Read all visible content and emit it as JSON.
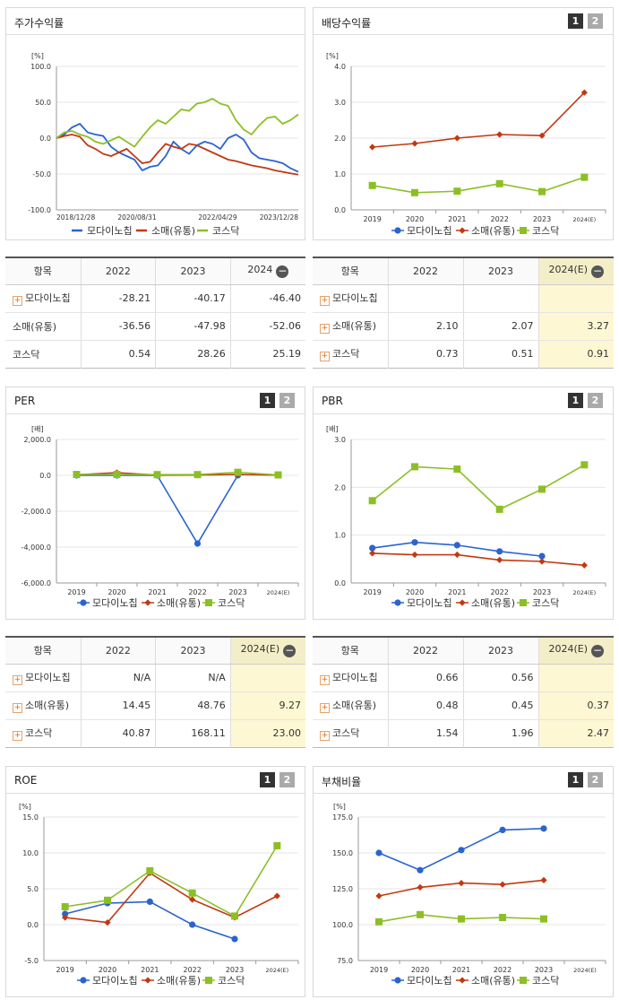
{
  "colors": {
    "series1": "#2a64d0",
    "series2": "#c23812",
    "series3": "#8cbf26",
    "highlight": "#fdf7d3"
  },
  "icons": {
    "expand": "plus-box-icon",
    "collapse": "minus-circle-icon",
    "page1": "page-1-button",
    "page2": "page-2-button"
  },
  "buttons": {
    "p1": "1",
    "p2": "2"
  },
  "tables": {
    "label_col": "항목",
    "stock": {
      "headers": [
        "2022",
        "2023",
        "2024"
      ],
      "rows": [
        {
          "name": "모다이노칩",
          "values": [
            "-28.21",
            "-40.17",
            "-46.40"
          ]
        },
        {
          "name": "소매(유통)",
          "values": [
            "-36.56",
            "-47.98",
            "-52.06"
          ]
        },
        {
          "name": "코스닥",
          "values": [
            "0.54",
            "28.26",
            "25.19"
          ]
        }
      ]
    },
    "div": {
      "headers": [
        "2022",
        "2023",
        "2024(E)"
      ],
      "rows": [
        {
          "name": "모다이노칩",
          "values": [
            "",
            "",
            ""
          ]
        },
        {
          "name": "소매(유통)",
          "values": [
            "2.10",
            "2.07",
            "3.27"
          ]
        },
        {
          "name": "코스닥",
          "values": [
            "0.73",
            "0.51",
            "0.91"
          ]
        }
      ]
    },
    "per": {
      "headers": [
        "2022",
        "2023",
        "2024(E)"
      ],
      "rows": [
        {
          "name": "모다이노칩",
          "values": [
            "N/A",
            "N/A",
            ""
          ]
        },
        {
          "name": "소매(유통)",
          "values": [
            "14.45",
            "48.76",
            "9.27"
          ]
        },
        {
          "name": "코스닥",
          "values": [
            "40.87",
            "168.11",
            "23.00"
          ]
        }
      ]
    },
    "pbr": {
      "headers": [
        "2022",
        "2023",
        "2024(E)"
      ],
      "rows": [
        {
          "name": "모다이노칩",
          "values": [
            "0.66",
            "0.56",
            ""
          ]
        },
        {
          "name": "소매(유통)",
          "values": [
            "0.48",
            "0.45",
            "0.37"
          ]
        },
        {
          "name": "코스닥",
          "values": [
            "1.54",
            "1.96",
            "2.47"
          ]
        }
      ]
    }
  },
  "chart_data": [
    {
      "id": "stock",
      "type": "line",
      "title": "주가수익률",
      "unit": "[%]",
      "ylim": [
        -100,
        100
      ],
      "yticks": [
        "100.0",
        "50.0",
        "0.0",
        "-50.0",
        "-100.0"
      ],
      "xticks": [
        "2018/12/28",
        "2020/08/31",
        "2022/04/29",
        "2023/12/28"
      ],
      "series": [
        {
          "name": "모다이노칩",
          "values": [
            0,
            5,
            15,
            20,
            8,
            5,
            3,
            -12,
            -20,
            -25,
            -30,
            -45,
            -40,
            -38,
            -25,
            -5,
            -15,
            -22,
            -10,
            -5,
            -8,
            -15,
            0,
            5,
            -2,
            -20,
            -28,
            -30,
            -32,
            -35,
            -42,
            -47
          ]
        },
        {
          "name": "소매(유통)",
          "values": [
            0,
            3,
            5,
            2,
            -10,
            -15,
            -22,
            -25,
            -20,
            -15,
            -25,
            -35,
            -33,
            -20,
            -8,
            -12,
            -15,
            -8,
            -10,
            -15,
            -20,
            -25,
            -30,
            -32,
            -35,
            -38,
            -40,
            -42,
            -45,
            -47,
            -49,
            -51
          ]
        },
        {
          "name": "코스닥",
          "values": [
            0,
            8,
            10,
            5,
            2,
            -5,
            -8,
            -3,
            2,
            -5,
            -12,
            2,
            15,
            25,
            20,
            30,
            40,
            38,
            48,
            50,
            55,
            48,
            45,
            25,
            12,
            5,
            18,
            28,
            30,
            20,
            25,
            33
          ]
        }
      ]
    },
    {
      "id": "div",
      "type": "line",
      "title": "배당수익률",
      "unit": "[%]",
      "ylim": [
        0,
        4
      ],
      "yticks": [
        "4.0",
        "3.0",
        "2.0",
        "1.0",
        "0.0"
      ],
      "categories": [
        "2019",
        "2020",
        "2021",
        "2022",
        "2023",
        "2024(E)"
      ],
      "series": [
        {
          "name": "모다이노칩",
          "values": [
            null,
            null,
            null,
            null,
            null,
            null
          ]
        },
        {
          "name": "소매(유통)",
          "values": [
            1.75,
            1.85,
            2.0,
            2.1,
            2.07,
            3.27
          ]
        },
        {
          "name": "코스닥",
          "values": [
            0.68,
            0.48,
            0.52,
            0.73,
            0.51,
            0.91
          ]
        }
      ]
    },
    {
      "id": "per",
      "type": "line",
      "title": "PER",
      "unit": "[배]",
      "ylim": [
        -6000,
        2000
      ],
      "yticks": [
        "2,000.0",
        "0.0",
        "-2,000.0",
        "-4,000.0",
        "-6,000.0"
      ],
      "categories": [
        "2019",
        "2020",
        "2021",
        "2022",
        "2023",
        "2024(E)"
      ],
      "series": [
        {
          "name": "모다이노칩",
          "values": [
            0,
            0,
            0,
            -3800,
            0,
            null
          ]
        },
        {
          "name": "소매(유통)",
          "values": [
            30,
            150,
            10,
            14.45,
            48.76,
            9.27
          ]
        },
        {
          "name": "코스닥",
          "values": [
            50,
            50,
            40,
            40.87,
            168.11,
            23.0
          ]
        }
      ]
    },
    {
      "id": "pbr",
      "type": "line",
      "title": "PBR",
      "unit": "[배]",
      "ylim": [
        0,
        3
      ],
      "yticks": [
        "3.0",
        "2.0",
        "1.0",
        "0.0"
      ],
      "categories": [
        "2019",
        "2020",
        "2021",
        "2022",
        "2023",
        "2024(E)"
      ],
      "series": [
        {
          "name": "모다이노칩",
          "values": [
            0.73,
            0.85,
            0.79,
            0.66,
            0.56,
            null
          ]
        },
        {
          "name": "소매(유통)",
          "values": [
            0.62,
            0.59,
            0.59,
            0.48,
            0.45,
            0.37
          ]
        },
        {
          "name": "코스닥",
          "values": [
            1.72,
            2.43,
            2.38,
            1.54,
            1.96,
            2.47
          ]
        }
      ]
    },
    {
      "id": "roe",
      "type": "line",
      "title": "ROE",
      "unit": "[%]",
      "ylim": [
        -5,
        15
      ],
      "yticks": [
        "15.0",
        "10.0",
        "5.0",
        "0.0",
        "-5.0"
      ],
      "categories": [
        "2019",
        "2020",
        "2021",
        "2022",
        "2023",
        "2024(E)"
      ],
      "series": [
        {
          "name": "모다이노칩",
          "values": [
            1.5,
            3.0,
            3.2,
            0,
            -2.0,
            null
          ]
        },
        {
          "name": "소매(유통)",
          "values": [
            1.0,
            0.3,
            7.2,
            3.5,
            1.0,
            4.0
          ]
        },
        {
          "name": "코스닥",
          "values": [
            2.5,
            3.4,
            7.5,
            4.4,
            1.2,
            11.0
          ]
        }
      ]
    },
    {
      "id": "debt",
      "type": "line",
      "title": "부채비율",
      "unit": "[%]",
      "ylim": [
        75,
        175
      ],
      "yticks": [
        "175.0",
        "150.0",
        "125.0",
        "100.0",
        "75.0"
      ],
      "categories": [
        "2019",
        "2020",
        "2021",
        "2022",
        "2023",
        "2024(E)"
      ],
      "series": [
        {
          "name": "모다이노칩",
          "values": [
            150,
            138,
            152,
            166,
            167,
            null
          ]
        },
        {
          "name": "소매(유통)",
          "values": [
            120,
            126,
            129,
            128,
            131,
            null
          ]
        },
        {
          "name": "코스닥",
          "values": [
            102,
            107,
            104,
            105,
            104,
            null
          ]
        }
      ]
    }
  ]
}
